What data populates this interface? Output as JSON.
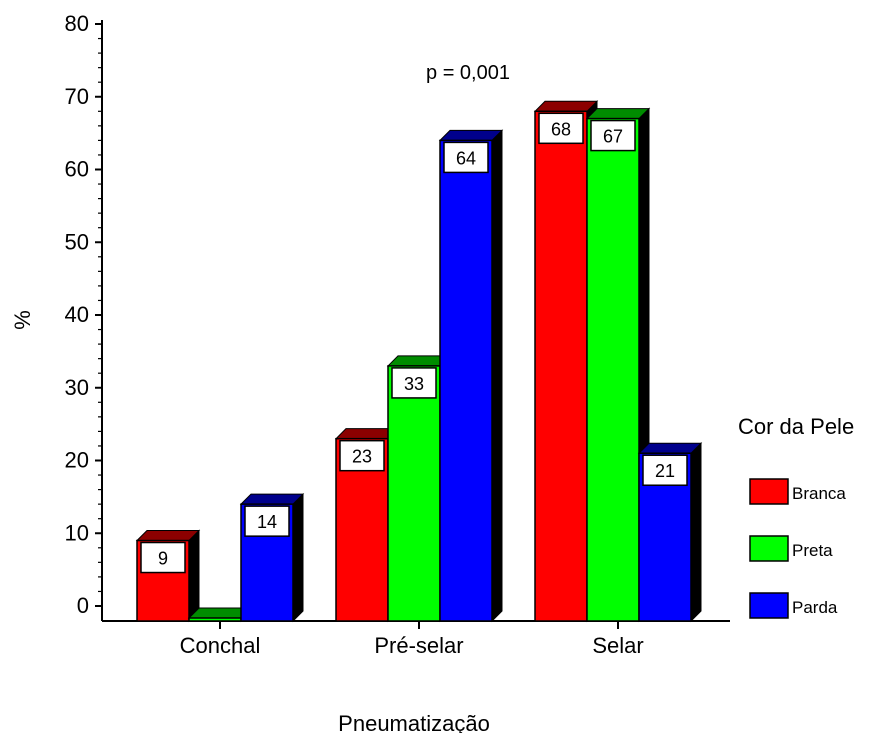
{
  "chart_data": {
    "type": "bar",
    "annotation": "p = 0,001",
    "xlabel": "Pneumatização",
    "ylabel": "%",
    "ylim": [
      0,
      80
    ],
    "y_ticks": [
      0,
      10,
      20,
      30,
      40,
      50,
      60,
      70,
      80
    ],
    "categories": [
      "Conchal",
      "Pré-selar",
      "Selar"
    ],
    "legend_title": "Cor da Pele",
    "legend_position": "right",
    "series": [
      {
        "name": "Branca",
        "color": "#ff0000",
        "values": [
          9,
          23,
          68
        ],
        "labels": [
          "9",
          "23",
          "68"
        ]
      },
      {
        "name": "Preta",
        "color": "#00ff00",
        "values": [
          0,
          33,
          67
        ],
        "labels": [
          "",
          "33",
          "67"
        ]
      },
      {
        "name": "Parda",
        "color": "#0000ff",
        "values": [
          14,
          64,
          21
        ],
        "labels": [
          "14",
          "64",
          "21"
        ]
      }
    ]
  }
}
